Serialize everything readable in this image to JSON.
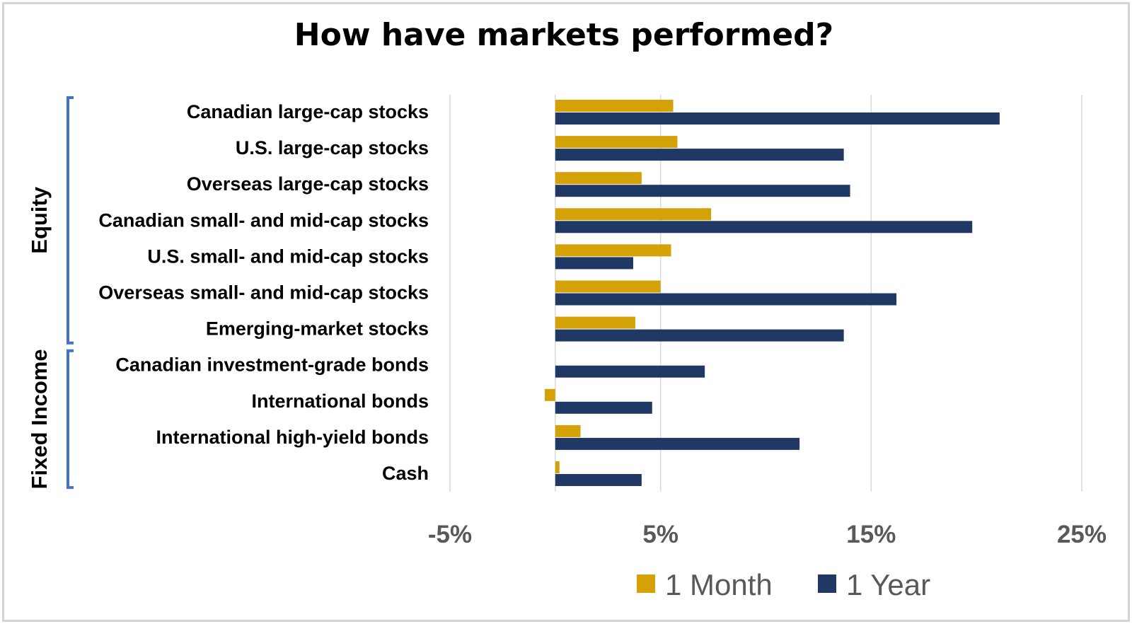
{
  "chart_data": {
    "type": "bar",
    "orientation": "horizontal",
    "title": "How have markets performed?",
    "categories": [
      "Canadian large-cap stocks",
      "U.S. large-cap stocks",
      "Overseas large-cap stocks",
      "Canadian small- and mid-cap stocks",
      "U.S. small- and mid-cap stocks",
      "Overseas small- and mid-cap stocks",
      "Emerging-market stocks",
      "Canadian investment-grade bonds",
      "International bonds",
      "International high-yield bonds",
      "Cash"
    ],
    "groups": [
      {
        "name": "Equity",
        "start": 0,
        "end": 6
      },
      {
        "name": "Fixed Income",
        "start": 7,
        "end": 10
      }
    ],
    "series": [
      {
        "name": "1 Month",
        "color": "#d4a106",
        "values": [
          5.6,
          5.8,
          4.1,
          7.4,
          5.5,
          5.0,
          3.8,
          0.0,
          -0.5,
          1.2,
          0.2
        ]
      },
      {
        "name": "1 Year",
        "color": "#1f3864",
        "values": [
          21.1,
          13.7,
          14.0,
          19.8,
          3.7,
          16.2,
          13.7,
          7.1,
          4.6,
          11.6,
          4.1
        ]
      }
    ],
    "xlim": [
      -5,
      25
    ],
    "xticks": [
      -5,
      5,
      15,
      25
    ],
    "xtick_labels": [
      "-5%",
      "5%",
      "15%",
      "25%"
    ],
    "xlabel": "",
    "ylabel": "",
    "grid": true,
    "legend_position": "bottom",
    "group_bracket_color": "#4472c4"
  }
}
